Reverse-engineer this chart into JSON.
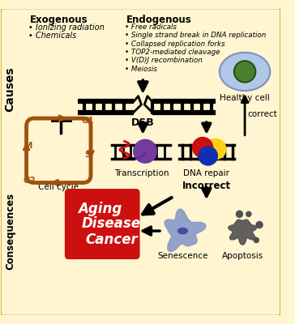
{
  "bg_color": "#FFF5D0",
  "border_color": "#C8A830",
  "exogenous_title": "Exogenous",
  "exogenous_items": [
    "Ionizing radiation",
    "Chemicals"
  ],
  "endogenous_title": "Endogenous",
  "endogenous_items": [
    "Free radicals",
    "Single strand break in DNA replication",
    "Collapsed replication forks",
    "TOP2-mediated cleavage",
    "V(D)J recombination",
    "Meiosis"
  ],
  "dsb_label": "DSB",
  "causes_label": "Causes",
  "consequences_label": "Consequences",
  "healthy_cell_label": "Healthy cell",
  "correct_label": "correct",
  "transcription_label": "Transcription",
  "dna_repair_label": "DNA repair",
  "cell_cycle_label": "Cell cycle",
  "incorrect_label": "Incorrect",
  "senescence_label": "Senescence",
  "apoptosis_label": "Apoptosis",
  "aging_label": "Aging",
  "disease_label": "Disease",
  "cancer_label": "Cancer",
  "cell_body_color": "#B0C8E8",
  "cell_nucleus_color": "#4A8030",
  "cell_cycle_color": "#A05010",
  "transcription_helix_color": "#CC1010",
  "transcription_blob_color": "#6B30A0",
  "dna_repair_red": "#CC1010",
  "dna_repair_blue": "#1030B0",
  "dna_repair_yellow": "#FFD010",
  "red_box_color": "#CC1010",
  "senescence_color": "#8898C8",
  "apoptosis_color": "#505050"
}
